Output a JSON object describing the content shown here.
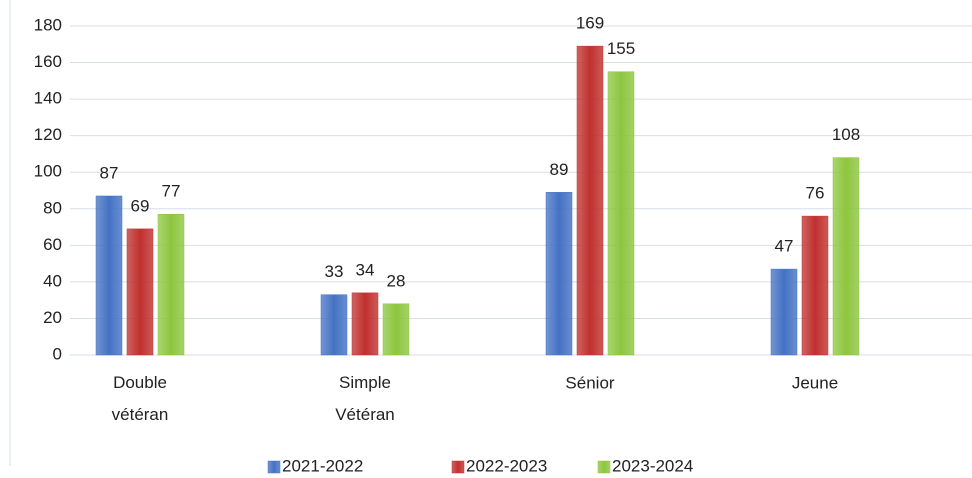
{
  "chart_data": {
    "type": "bar",
    "categories": [
      "Double vétéran",
      "Simple Vétéran",
      "Sénior",
      "Jeune"
    ],
    "series": [
      {
        "name": "2021-2022",
        "color": "#4472c4",
        "values": [
          87,
          33,
          89,
          47
        ]
      },
      {
        "name": "2022-2023",
        "color": "#c0302e",
        "values": [
          69,
          34,
          169,
          76
        ]
      },
      {
        "name": "2023-2024",
        "color": "#8dc63f",
        "values": [
          77,
          28,
          155,
          108
        ]
      }
    ],
    "ylim": [
      0,
      180
    ],
    "yticks": [
      0,
      20,
      40,
      60,
      80,
      100,
      120,
      140,
      160,
      180
    ],
    "grid": true,
    "legend": "bottom"
  }
}
